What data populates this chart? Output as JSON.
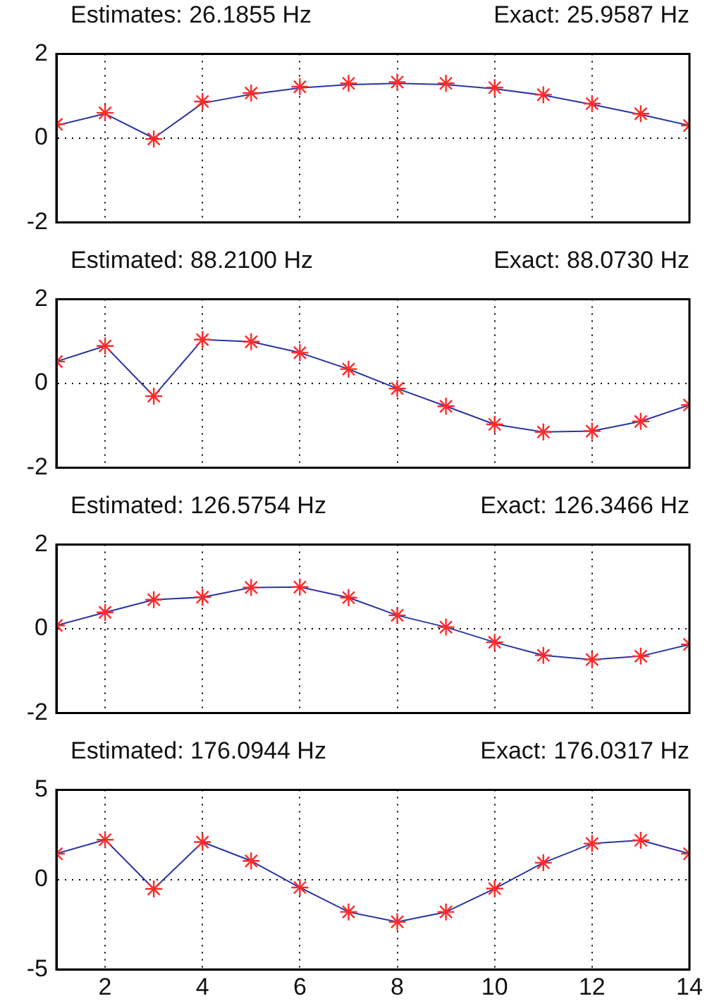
{
  "chart_data": [
    {
      "type": "line",
      "title": "Estimates: 26.1855 Hz",
      "subtitle": "Exact: 25.9587 Hz",
      "x": [
        1,
        2,
        3,
        4,
        5,
        6,
        7,
        8,
        9,
        10,
        11,
        12,
        13,
        14
      ],
      "xlim": [
        1,
        14
      ],
      "xticks": [
        2,
        4,
        6,
        8,
        10,
        12,
        14
      ],
      "ylim": [
        -2,
        2
      ],
      "yticks": [
        -2,
        0,
        2
      ],
      "grid": true,
      "tick_labels": "y",
      "series": [
        {
          "color": "#2c35a0",
          "marker": "none",
          "values": [
            0.3,
            0.58,
            0.0,
            0.83,
            1.04,
            1.19,
            1.27,
            1.3,
            1.27,
            1.17,
            1.02,
            0.8,
            0.56,
            0.3
          ]
        },
        {
          "type": "scatter",
          "color": "#ff2a2a",
          "marker": "cross",
          "values": [
            0.33,
            0.6,
            -0.02,
            0.87,
            1.07,
            1.22,
            1.3,
            1.33,
            1.3,
            1.2,
            1.03,
            0.82,
            0.58,
            0.3
          ]
        }
      ]
    },
    {
      "type": "line",
      "title": "Estimated: 88.2100 Hz",
      "subtitle": "Exact: 88.0730 Hz",
      "x": [
        1,
        2,
        3,
        4,
        5,
        6,
        7,
        8,
        9,
        10,
        11,
        12,
        13,
        14
      ],
      "xlim": [
        1,
        14
      ],
      "xticks": [
        2,
        4,
        6,
        8,
        10,
        12,
        14
      ],
      "ylim": [
        -2,
        2
      ],
      "yticks": [
        -2,
        0,
        2
      ],
      "grid": true,
      "tick_labels": "y",
      "series": [
        {
          "color": "#2c35a0",
          "marker": "none",
          "values": [
            0.52,
            0.89,
            -0.3,
            1.04,
            0.99,
            0.73,
            0.34,
            -0.12,
            -0.54,
            -0.97,
            -1.15,
            -1.13,
            -0.9,
            -0.51
          ]
        },
        {
          "type": "scatter",
          "color": "#ff2a2a",
          "marker": "cross",
          "values": [
            0.52,
            0.89,
            -0.3,
            1.04,
            0.99,
            0.73,
            0.34,
            -0.12,
            -0.54,
            -0.97,
            -1.15,
            -1.13,
            -0.9,
            -0.51
          ]
        }
      ]
    },
    {
      "type": "line",
      "title": "Estimated: 126.5754 Hz",
      "subtitle": "Exact: 126.3466 Hz",
      "x": [
        1,
        2,
        3,
        4,
        5,
        6,
        7,
        8,
        9,
        10,
        11,
        12,
        13,
        14
      ],
      "xlim": [
        1,
        14
      ],
      "xticks": [
        2,
        4,
        6,
        8,
        10,
        12,
        14
      ],
      "ylim": [
        -2,
        2
      ],
      "yticks": [
        -2,
        0,
        2
      ],
      "grid": true,
      "tick_labels": "y",
      "series": [
        {
          "color": "#2c35a0",
          "marker": "none",
          "values": [
            0.08,
            0.39,
            0.69,
            0.75,
            0.98,
            0.99,
            0.74,
            0.32,
            0.04,
            -0.32,
            -0.63,
            -0.73,
            -0.65,
            -0.37
          ]
        },
        {
          "type": "scatter",
          "color": "#ff2a2a",
          "marker": "cross",
          "values": [
            0.08,
            0.39,
            0.69,
            0.75,
            0.98,
            0.99,
            0.74,
            0.32,
            0.04,
            -0.32,
            -0.63,
            -0.73,
            -0.65,
            -0.37
          ]
        }
      ]
    },
    {
      "type": "line",
      "title": "Estimated: 176.0944 Hz",
      "subtitle": "Exact: 176.0317 Hz",
      "x": [
        1,
        2,
        3,
        4,
        5,
        6,
        7,
        8,
        9,
        10,
        11,
        12,
        13,
        14
      ],
      "xlim": [
        1,
        14
      ],
      "xticks": [
        2,
        4,
        6,
        8,
        10,
        12,
        14
      ],
      "ylim": [
        -5,
        5
      ],
      "yticks": [
        -5,
        0,
        5
      ],
      "grid": true,
      "series": [
        {
          "color": "#2c35a0",
          "marker": "none",
          "values": [
            1.44,
            2.22,
            -0.52,
            2.09,
            1.04,
            -0.44,
            -1.8,
            -2.35,
            -1.8,
            -0.5,
            0.94,
            2.01,
            2.19,
            1.44
          ]
        },
        {
          "type": "scatter",
          "color": "#ff2a2a",
          "marker": "cross",
          "values": [
            1.44,
            2.22,
            -0.52,
            2.09,
            1.04,
            -0.44,
            -1.8,
            -2.35,
            -1.8,
            -0.5,
            0.94,
            2.01,
            2.19,
            1.44
          ]
        }
      ]
    }
  ]
}
